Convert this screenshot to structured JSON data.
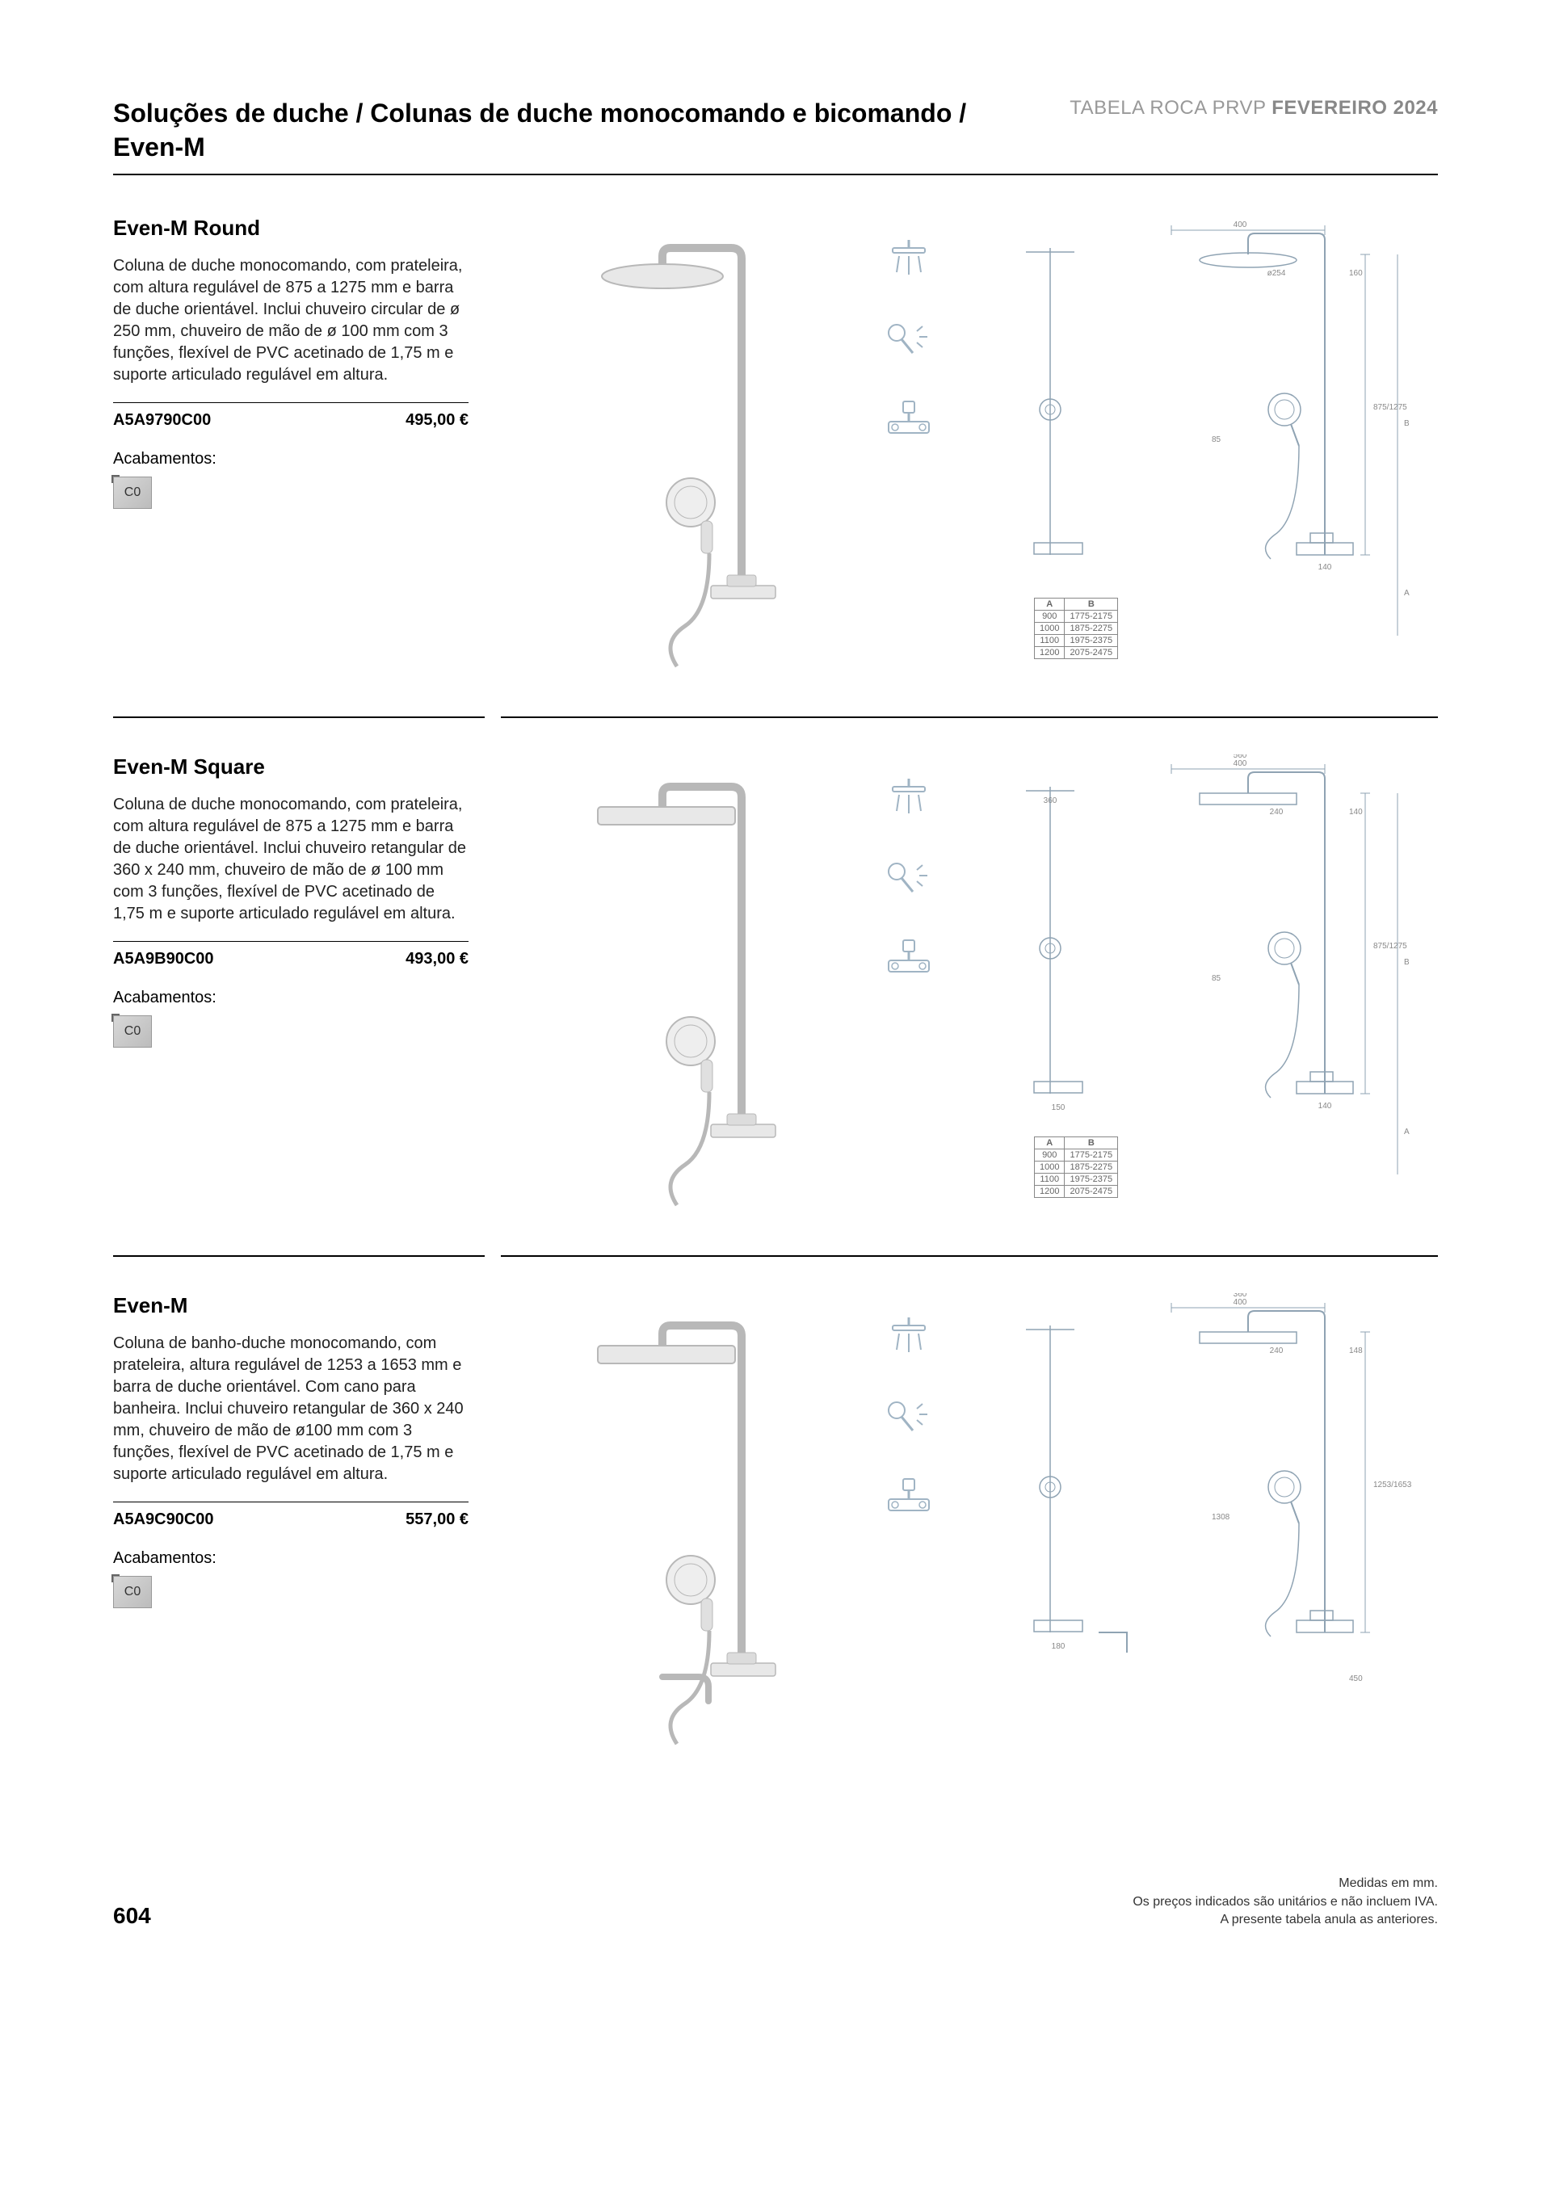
{
  "header": {
    "breadcrumb": "Soluções de duche / Colunas de duche monocomando e bicomando / Even-M",
    "doc_label_prefix": "TABELA ROCA PRVP ",
    "doc_label_bold": "FEVEREIRO 2024"
  },
  "products": [
    {
      "title": "Even-M Round",
      "description": "Coluna de duche monocomando, com prateleira, com altura regulável de 875 a 1275 mm e barra de duche orientável. Inclui chuveiro circular de ø 250 mm, chuveiro de mão de ø 100 mm com 3 funções, flexível de PVC acetinado de 1,75 m e suporte articulado regulável em altura.",
      "sku": "A5A9790C00",
      "price": "495,00 €",
      "finishes_label": "Acabamentos:",
      "finish_code": "C0",
      "head_shape": "round",
      "tech": {
        "top_width": "400",
        "head_dim": "ø254",
        "top_drop": "160",
        "height_range": "875/1275",
        "height_B": "B",
        "height_A": "A",
        "hand_dim": "85",
        "bottom_width": "140",
        "dim_headers": [
          "A",
          "B"
        ],
        "dim_rows": [
          [
            "900",
            "1775-2175"
          ],
          [
            "1000",
            "1875-2275"
          ],
          [
            "1100",
            "1975-2375"
          ],
          [
            "1200",
            "2075-2475"
          ]
        ]
      }
    },
    {
      "title": "Even-M Square",
      "description": "Coluna de duche monocomando, com prateleira, com altura regulável de 875 a 1275 mm e barra de duche orientável. Inclui chuveiro retangular de 360 x 240 mm, chuveiro de mão de ø 100 mm com 3 funções, flexível de PVC acetinado de 1,75 m e suporte articulado regulável em altura.",
      "sku": "A5A9B90C00",
      "price": "493,00 €",
      "finishes_label": "Acabamentos:",
      "finish_code": "C0",
      "head_shape": "square",
      "tech": {
        "top_outer": "560",
        "top_width": "400",
        "head_dim": "240",
        "top_drop": "140",
        "head_w": "360",
        "height_range": "875/1275",
        "height_B": "B",
        "height_A": "A",
        "hand_dim": "85",
        "bottom_width": "140",
        "bottom_outer": "150",
        "dim_headers": [
          "A",
          "B"
        ],
        "dim_rows": [
          [
            "900",
            "1775-2175"
          ],
          [
            "1000",
            "1875-2275"
          ],
          [
            "1100",
            "1975-2375"
          ],
          [
            "1200",
            "2075-2475"
          ]
        ]
      }
    },
    {
      "title": "Even-M",
      "description": "Coluna de banho-duche monocomando, com prateleira, altura regulável de 1253 a 1653 mm e barra de duche orientável. Com cano para banheira. Inclui chuveiro retangular de 360 x 240 mm, chuveiro de mão de ø100 mm com 3 funções, flexível de PVC acetinado de 1,75 m e suporte articulado regulável em altura.",
      "sku": "A5A9C90C00",
      "price": "557,00 €",
      "finishes_label": "Acabamentos:",
      "finish_code": "C0",
      "head_shape": "square",
      "has_spout": true,
      "tech": {
        "top_outer": "360",
        "top_width": "400",
        "head_dim": "240",
        "top_drop": "148",
        "height_range": "1253/1653",
        "hand_dim": "1308",
        "bottom_outer": "180",
        "spout_drop": "450"
      }
    }
  ],
  "footer": {
    "page_num": "604",
    "notes": [
      "Medidas em mm.",
      "Os preços indicados são unitários e não incluem IVA.",
      "A presente tabela anula as anteriores."
    ]
  },
  "colors": {
    "text": "#000000",
    "muted": "#999999",
    "drawing_stroke": "#8fa3b3",
    "image_stroke": "#b8b8b8"
  }
}
